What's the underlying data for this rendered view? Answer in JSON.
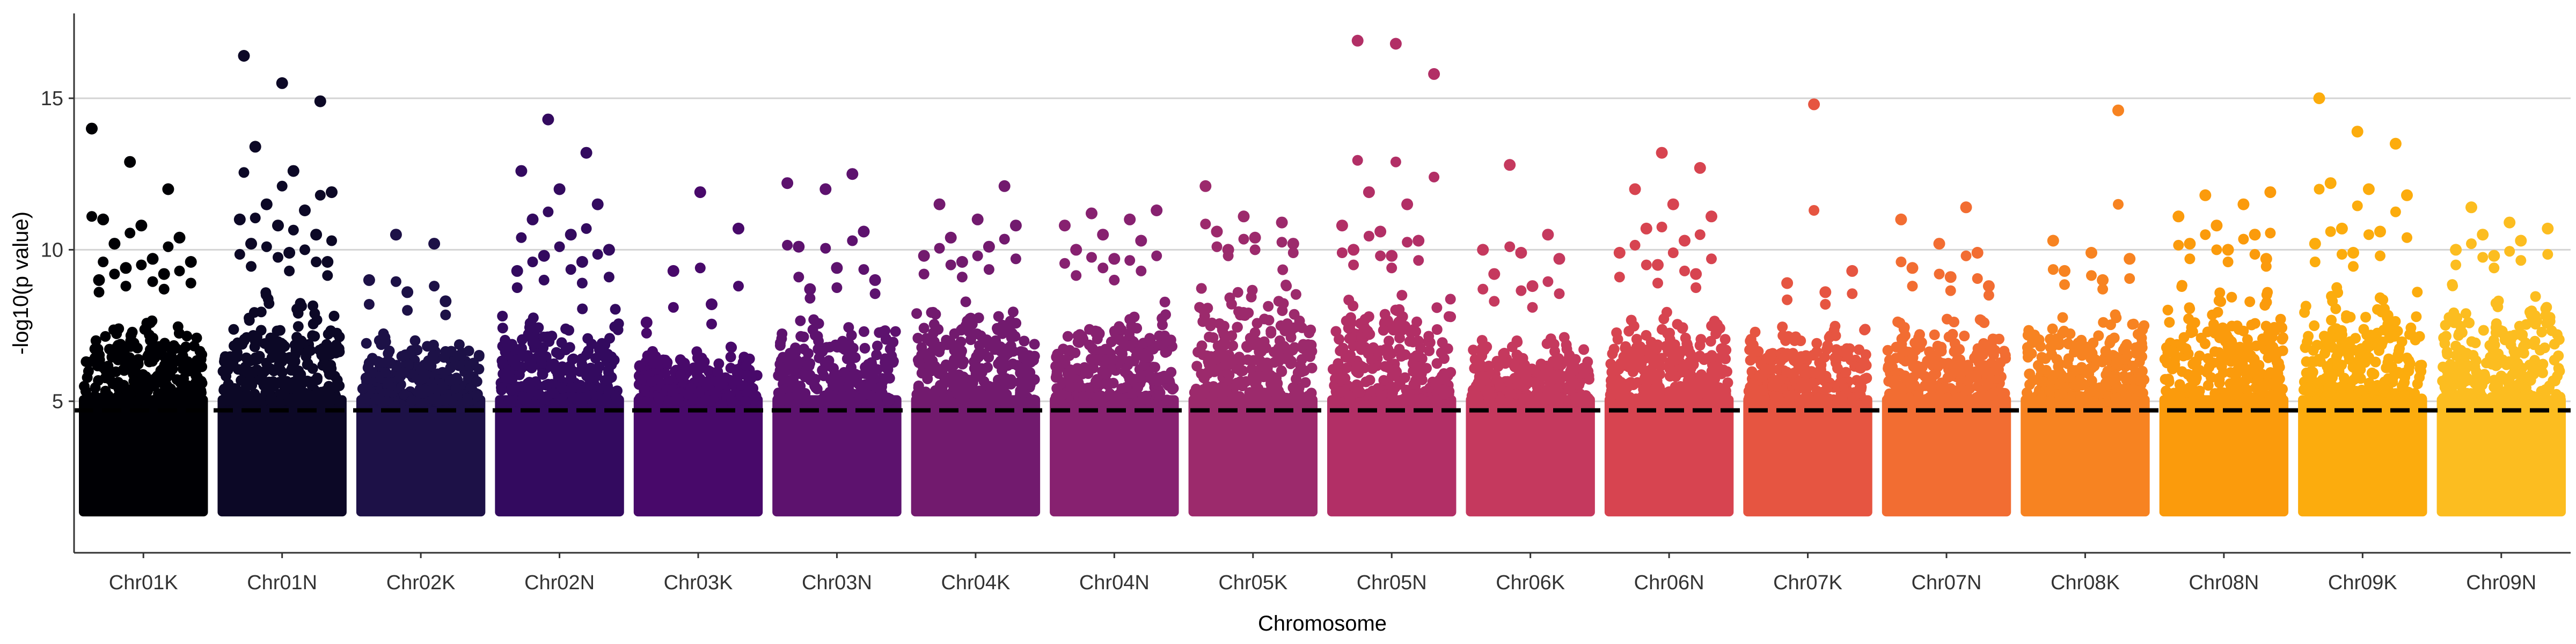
{
  "chart_data": {
    "type": "scatter",
    "subtype": "manhattan",
    "title": "",
    "xlabel": "Chromosome",
    "ylabel": "-log10(p value)",
    "ylim": [
      0,
      17.8
    ],
    "yticks": [
      5,
      10,
      15
    ],
    "grid": {
      "horizontal_major": true,
      "vertical": false
    },
    "threshold": {
      "value": 4.7,
      "style": "dashed",
      "color": "#000000"
    },
    "floor": 1.2,
    "categories": [
      "Chr01K",
      "Chr01N",
      "Chr02K",
      "Chr02N",
      "Chr03K",
      "Chr03N",
      "Chr04K",
      "Chr04N",
      "Chr05K",
      "Chr05N",
      "Chr06K",
      "Chr06N",
      "Chr07K",
      "Chr07N",
      "Chr08K",
      "Chr08N",
      "Chr09K",
      "Chr09N"
    ],
    "colors": [
      "#000004",
      "#0c0826",
      "#1d1147",
      "#330a5f",
      "#48096a",
      "#5d126e",
      "#721a6e",
      "#872170",
      "#9c2a6c",
      "#b22f66",
      "#c5395e",
      "#d74450",
      "#e65541",
      "#f26d32",
      "#f78321",
      "#fb9b0c",
      "#fcac0d",
      "#fcbd20"
    ],
    "series": [
      {
        "name": "Chr01K",
        "bulk_max": 8.2,
        "top_hits": [
          14.0,
          12.9,
          12.0,
          11.0,
          10.8,
          10.4,
          10.2,
          9.7,
          9.6,
          9.4,
          9.2,
          9.0
        ]
      },
      {
        "name": "Chr01N",
        "bulk_max": 8.7,
        "top_hits": [
          16.4,
          15.5,
          14.9,
          13.4,
          12.6,
          11.9,
          11.5,
          11.3,
          11.0,
          10.8,
          10.5,
          10.2,
          9.9,
          9.6
        ]
      },
      {
        "name": "Chr02K",
        "bulk_max": 7.4,
        "top_hits": [
          10.5,
          10.2,
          9.0,
          8.6,
          8.3
        ]
      },
      {
        "name": "Chr02N",
        "bulk_max": 8.2,
        "top_hits": [
          14.3,
          13.2,
          12.6,
          12.0,
          11.5,
          11.0,
          10.5,
          10.0,
          9.8,
          9.6,
          9.3
        ]
      },
      {
        "name": "Chr03K",
        "bulk_max": 6.9,
        "top_hits": [
          11.9,
          10.7,
          9.3,
          8.2,
          7.6
        ]
      },
      {
        "name": "Chr03N",
        "bulk_max": 8.1,
        "top_hits": [
          12.5,
          12.2,
          12.0,
          10.6,
          10.1,
          9.4,
          9.0,
          8.7
        ]
      },
      {
        "name": "Chr04K",
        "bulk_max": 8.6,
        "top_hits": [
          12.1,
          11.5,
          11.0,
          10.8,
          10.4,
          10.1,
          9.8,
          9.6
        ]
      },
      {
        "name": "Chr04N",
        "bulk_max": 8.3,
        "top_hits": [
          11.3,
          11.2,
          11.0,
          10.8,
          10.5,
          10.3,
          10.0,
          9.7
        ]
      },
      {
        "name": "Chr05K",
        "bulk_max": 9.6,
        "top_hits": [
          12.1,
          11.1,
          10.9,
          10.6,
          10.4,
          10.2,
          10.0
        ]
      },
      {
        "name": "Chr05N",
        "bulk_max": 9.0,
        "top_hits": [
          16.9,
          16.8,
          15.8,
          11.9,
          11.5,
          10.8,
          10.6,
          10.3,
          10.0,
          9.8
        ]
      },
      {
        "name": "Chr06K",
        "bulk_max": 7.4,
        "top_hits": [
          12.8,
          10.5,
          10.0,
          9.9,
          9.7,
          9.2,
          8.8
        ]
      },
      {
        "name": "Chr06N",
        "bulk_max": 8.3,
        "top_hits": [
          13.2,
          12.7,
          12.0,
          11.5,
          11.1,
          10.7,
          10.3,
          9.9,
          9.5,
          9.2
        ]
      },
      {
        "name": "Chr07K",
        "bulk_max": 7.8,
        "top_hits": [
          14.8,
          9.3,
          8.9,
          8.6
        ]
      },
      {
        "name": "Chr07N",
        "bulk_max": 8.2,
        "top_hits": [
          11.4,
          11.0,
          10.2,
          9.9,
          9.4,
          9.1,
          8.8
        ]
      },
      {
        "name": "Chr08K",
        "bulk_max": 8.4,
        "top_hits": [
          14.6,
          10.3,
          9.9,
          9.7,
          9.3,
          9.0
        ]
      },
      {
        "name": "Chr08N",
        "bulk_max": 9.2,
        "top_hits": [
          11.9,
          11.8,
          11.5,
          11.1,
          10.8,
          10.5,
          10.2,
          10.0,
          9.7
        ]
      },
      {
        "name": "Chr09K",
        "bulk_max": 9.0,
        "top_hits": [
          15.0,
          13.9,
          13.5,
          12.2,
          12.0,
          11.8,
          10.7,
          10.6,
          10.2,
          9.9
        ]
      },
      {
        "name": "Chr09N",
        "bulk_max": 9.0,
        "top_hits": [
          11.4,
          10.9,
          10.7,
          10.5,
          10.3,
          10.0,
          9.8
        ]
      }
    ]
  }
}
